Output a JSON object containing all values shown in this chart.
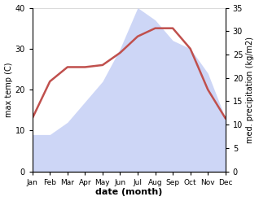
{
  "months": [
    "Jan",
    "Feb",
    "Mar",
    "Apr",
    "May",
    "Jun",
    "Jul",
    "Aug",
    "Sep",
    "Oct",
    "Nov",
    "Dec"
  ],
  "temperature": [
    13,
    22,
    25.5,
    25.5,
    26,
    29,
    33,
    35,
    35,
    30,
    20,
    13
  ],
  "precipitation": [
    9,
    9,
    12,
    17,
    22,
    30,
    40,
    37,
    32,
    30,
    24,
    13
  ],
  "precip_fill_color": "#c5cff5",
  "precip_fill_alpha": 0.85,
  "xlabel": "date (month)",
  "ylabel_left": "max temp (C)",
  "ylabel_right": "med. precipitation (kg/m2)",
  "ylim_left": [
    0,
    40
  ],
  "ylim_right": [
    0,
    35
  ],
  "yticks_left": [
    0,
    10,
    20,
    30,
    40
  ],
  "yticks_right": [
    0,
    5,
    10,
    15,
    20,
    25,
    30,
    35
  ],
  "background_color": "#ffffff",
  "temp_linewidth": 1.8,
  "temp_line_color": "#c0504d",
  "spine_color": "#aaaaaa"
}
